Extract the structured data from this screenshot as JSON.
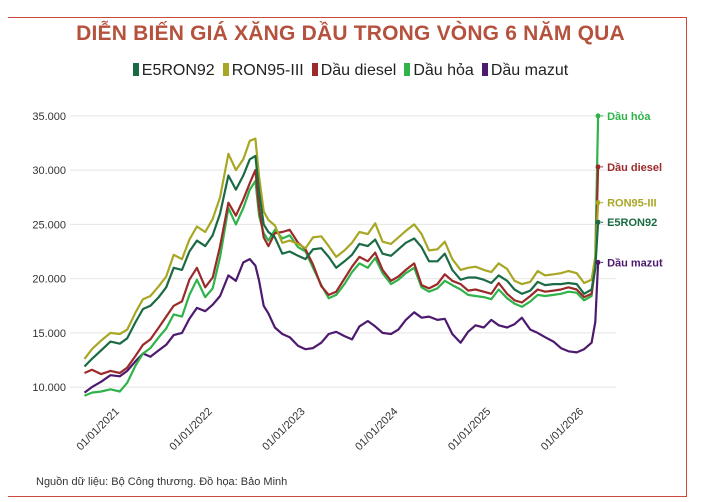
{
  "title": "DIỄN BIẾN GIÁ XĂNG DẦU TRONG VÒNG 6 NĂM QUA",
  "source": "Nguồn dữ liệu: Bộ Công thương. Đồ họa: Bảo Minh",
  "chart_data": {
    "type": "line",
    "title": "DIỄN BIẾN GIÁ XĂNG DẦU TRONG VÒNG 6 NĂM QUA",
    "xlabel": "",
    "ylabel": "",
    "ylim": [
      9000,
      36000
    ],
    "yticks": [
      10000,
      15000,
      20000,
      25000,
      30000,
      35000
    ],
    "ytick_labels": [
      "10.000",
      "15.000",
      "20.000",
      "25.000",
      "30.000",
      "35.000"
    ],
    "xlim": [
      2020.55,
      2026.3
    ],
    "xticks": [
      2021,
      2022,
      2023,
      2024,
      2025,
      2026
    ],
    "xtick_labels": [
      "01/01/2021",
      "01/01/2022",
      "01/01/2023",
      "01/01/2024",
      "01/01/2025",
      "01/01/2026"
    ],
    "legend_position": "top",
    "series": [
      {
        "name": "E5RON92",
        "color": "#1a6b45",
        "end_label": "E5RON92",
        "x": [
          2020.62,
          2020.7,
          2020.8,
          2020.9,
          2021.0,
          2021.08,
          2021.17,
          2021.25,
          2021.33,
          2021.42,
          2021.5,
          2021.58,
          2021.67,
          2021.75,
          2021.83,
          2021.92,
          2022.0,
          2022.08,
          2022.17,
          2022.25,
          2022.33,
          2022.4,
          2022.46,
          2022.5,
          2022.55,
          2022.6,
          2022.67,
          2022.75,
          2022.83,
          2022.92,
          2023.0,
          2023.08,
          2023.17,
          2023.25,
          2023.33,
          2023.42,
          2023.5,
          2023.58,
          2023.67,
          2023.75,
          2023.83,
          2023.92,
          2024.0,
          2024.08,
          2024.17,
          2024.25,
          2024.33,
          2024.42,
          2024.5,
          2024.58,
          2024.67,
          2024.75,
          2024.83,
          2024.92,
          2025.0,
          2025.08,
          2025.17,
          2025.25,
          2025.33,
          2025.42,
          2025.5,
          2025.58,
          2025.67,
          2025.75,
          2025.83,
          2025.92,
          2026.0,
          2026.08,
          2026.12,
          2026.15
        ],
        "y": [
          11900,
          12600,
          13400,
          14200,
          14000,
          14500,
          16000,
          17200,
          17500,
          18300,
          19200,
          21000,
          20800,
          22500,
          23500,
          23000,
          24000,
          26000,
          29500,
          28200,
          29500,
          31000,
          31300,
          28000,
          25000,
          24300,
          23800,
          22300,
          22500,
          22100,
          21800,
          22700,
          22800,
          22000,
          21000,
          21600,
          22200,
          23200,
          23000,
          23600,
          22300,
          22100,
          22700,
          23300,
          23700,
          22900,
          21600,
          21600,
          22300,
          20800,
          19900,
          20100,
          20100,
          19900,
          19600,
          20300,
          19800,
          19000,
          18600,
          18900,
          19700,
          19400,
          19500,
          19500,
          19600,
          19500,
          18600,
          19000,
          21000,
          25200
        ]
      },
      {
        "name": "RON95-III",
        "color": "#a8a725",
        "end_label": "RON95-III",
        "x": [
          2020.62,
          2020.7,
          2020.8,
          2020.9,
          2021.0,
          2021.08,
          2021.17,
          2021.25,
          2021.33,
          2021.42,
          2021.5,
          2021.58,
          2021.67,
          2021.75,
          2021.83,
          2021.92,
          2022.0,
          2022.08,
          2022.17,
          2022.25,
          2022.33,
          2022.4,
          2022.46,
          2022.5,
          2022.55,
          2022.6,
          2022.67,
          2022.75,
          2022.83,
          2022.92,
          2023.0,
          2023.08,
          2023.17,
          2023.25,
          2023.33,
          2023.42,
          2023.5,
          2023.58,
          2023.67,
          2023.75,
          2023.83,
          2023.92,
          2024.0,
          2024.08,
          2024.17,
          2024.25,
          2024.33,
          2024.42,
          2024.5,
          2024.58,
          2024.67,
          2024.75,
          2024.83,
          2024.92,
          2025.0,
          2025.08,
          2025.17,
          2025.25,
          2025.33,
          2025.42,
          2025.5,
          2025.58,
          2025.67,
          2025.75,
          2025.83,
          2025.92,
          2026.0,
          2026.08,
          2026.12,
          2026.15
        ],
        "y": [
          12600,
          13500,
          14300,
          15000,
          14900,
          15300,
          16900,
          18100,
          18400,
          19300,
          20200,
          22200,
          21800,
          23600,
          24800,
          24300,
          25500,
          27500,
          31500,
          30000,
          31000,
          32700,
          32900,
          29400,
          26200,
          25400,
          24900,
          23300,
          23500,
          23200,
          22800,
          23800,
          23900,
          23000,
          22000,
          22600,
          23300,
          24300,
          24100,
          25100,
          23400,
          23200,
          23800,
          24400,
          25000,
          24100,
          22600,
          22700,
          23400,
          21800,
          20800,
          21000,
          21100,
          20800,
          20600,
          21400,
          20900,
          19800,
          19500,
          19700,
          20700,
          20300,
          20400,
          20500,
          20700,
          20500,
          19600,
          19900,
          22000,
          27000
        ]
      },
      {
        "name": "Dầu diesel",
        "color": "#9b2a2a",
        "end_label": "Dầu diesel",
        "x": [
          2020.62,
          2020.7,
          2020.8,
          2020.9,
          2021.0,
          2021.08,
          2021.17,
          2021.25,
          2021.33,
          2021.42,
          2021.5,
          2021.58,
          2021.67,
          2021.75,
          2021.83,
          2021.92,
          2022.0,
          2022.08,
          2022.17,
          2022.25,
          2022.33,
          2022.4,
          2022.46,
          2022.5,
          2022.55,
          2022.6,
          2022.67,
          2022.75,
          2022.83,
          2022.92,
          2023.0,
          2023.08,
          2023.17,
          2023.25,
          2023.33,
          2023.42,
          2023.5,
          2023.58,
          2023.67,
          2023.75,
          2023.83,
          2023.92,
          2024.0,
          2024.08,
          2024.17,
          2024.25,
          2024.33,
          2024.42,
          2024.5,
          2024.58,
          2024.67,
          2024.75,
          2024.83,
          2024.92,
          2025.0,
          2025.08,
          2025.17,
          2025.25,
          2025.33,
          2025.42,
          2025.5,
          2025.58,
          2025.67,
          2025.75,
          2025.83,
          2025.92,
          2026.0,
          2026.08,
          2026.12,
          2026.15
        ],
        "y": [
          11300,
          11600,
          11200,
          11500,
          11300,
          11800,
          12900,
          13900,
          14400,
          15500,
          16500,
          17500,
          17900,
          19900,
          21000,
          19200,
          20100,
          23000,
          27000,
          25800,
          27300,
          28800,
          30000,
          26500,
          23800,
          23000,
          24200,
          24300,
          24500,
          23300,
          22700,
          21300,
          19300,
          18500,
          18800,
          20000,
          21100,
          22000,
          21600,
          22400,
          20800,
          19800,
          20200,
          20800,
          21400,
          19400,
          19100,
          19500,
          20400,
          19800,
          19500,
          18900,
          19000,
          18800,
          18600,
          19600,
          18600,
          18000,
          17800,
          18400,
          19000,
          18800,
          18900,
          19000,
          19200,
          19000,
          18300,
          18600,
          21000,
          30300
        ]
      },
      {
        "name": "Dầu hỏa",
        "color": "#2fb34a",
        "end_label": "Dầu hỏa",
        "x": [
          2020.62,
          2020.7,
          2020.8,
          2020.9,
          2021.0,
          2021.08,
          2021.17,
          2021.25,
          2021.33,
          2021.42,
          2021.5,
          2021.58,
          2021.67,
          2021.75,
          2021.83,
          2021.92,
          2022.0,
          2022.08,
          2022.17,
          2022.25,
          2022.33,
          2022.4,
          2022.46,
          2022.5,
          2022.55,
          2022.6,
          2022.67,
          2022.75,
          2022.83,
          2022.92,
          2023.0,
          2023.08,
          2023.17,
          2023.25,
          2023.33,
          2023.42,
          2023.5,
          2023.58,
          2023.67,
          2023.75,
          2023.83,
          2023.92,
          2024.0,
          2024.08,
          2024.17,
          2024.25,
          2024.33,
          2024.42,
          2024.5,
          2024.58,
          2024.67,
          2024.75,
          2024.83,
          2024.92,
          2025.0,
          2025.08,
          2025.17,
          2025.25,
          2025.33,
          2025.42,
          2025.5,
          2025.58,
          2025.67,
          2025.75,
          2025.83,
          2025.92,
          2026.0,
          2026.08,
          2026.12,
          2026.15
        ],
        "y": [
          9200,
          9500,
          9600,
          9800,
          9600,
          10400,
          12000,
          13100,
          13600,
          14600,
          15400,
          16700,
          16500,
          18500,
          19900,
          18300,
          19100,
          22000,
          26500,
          25000,
          26500,
          28200,
          29000,
          25800,
          24200,
          23500,
          24500,
          23700,
          24000,
          22900,
          22500,
          21000,
          19400,
          18200,
          18500,
          19500,
          20600,
          21400,
          21000,
          21900,
          20500,
          19500,
          19900,
          20500,
          21000,
          19200,
          18800,
          19100,
          19800,
          19400,
          19000,
          18500,
          18400,
          18300,
          18100,
          19000,
          18200,
          17700,
          17400,
          17900,
          18500,
          18400,
          18500,
          18600,
          18800,
          18700,
          18000,
          18400,
          22000,
          35000
        ]
      },
      {
        "name": "Dầu mazut",
        "color": "#4d1a6e",
        "end_label": "Dầu mazut",
        "x": [
          2020.62,
          2020.7,
          2020.8,
          2020.9,
          2021.0,
          2021.08,
          2021.17,
          2021.25,
          2021.33,
          2021.42,
          2021.5,
          2021.58,
          2021.67,
          2021.75,
          2021.83,
          2021.92,
          2022.0,
          2022.08,
          2022.17,
          2022.25,
          2022.33,
          2022.4,
          2022.46,
          2022.5,
          2022.55,
          2022.6,
          2022.67,
          2022.75,
          2022.83,
          2022.92,
          2023.0,
          2023.08,
          2023.17,
          2023.25,
          2023.33,
          2023.42,
          2023.5,
          2023.58,
          2023.67,
          2023.75,
          2023.83,
          2023.92,
          2024.0,
          2024.08,
          2024.17,
          2024.25,
          2024.33,
          2024.42,
          2024.5,
          2024.58,
          2024.67,
          2024.75,
          2024.83,
          2024.92,
          2025.0,
          2025.08,
          2025.17,
          2025.25,
          2025.33,
          2025.42,
          2025.5,
          2025.58,
          2025.67,
          2025.75,
          2025.83,
          2025.92,
          2026.0,
          2026.08,
          2026.12,
          2026.15
        ],
        "y": [
          9500,
          10000,
          10500,
          11100,
          11000,
          11500,
          12400,
          13100,
          12800,
          13400,
          13900,
          14800,
          15000,
          16300,
          17300,
          17000,
          17600,
          18400,
          20300,
          19800,
          21500,
          21800,
          21200,
          19800,
          17500,
          16800,
          15500,
          14900,
          14600,
          13800,
          13500,
          13600,
          14100,
          14900,
          15100,
          14700,
          14400,
          15600,
          16100,
          15600,
          15000,
          14900,
          15300,
          16200,
          16900,
          16400,
          16500,
          16200,
          16300,
          14900,
          14100,
          15100,
          15700,
          15500,
          16200,
          15700,
          15500,
          15800,
          16400,
          15300,
          15000,
          14600,
          14200,
          13600,
          13300,
          13200,
          13500,
          14100,
          16000,
          21500
        ]
      }
    ]
  }
}
